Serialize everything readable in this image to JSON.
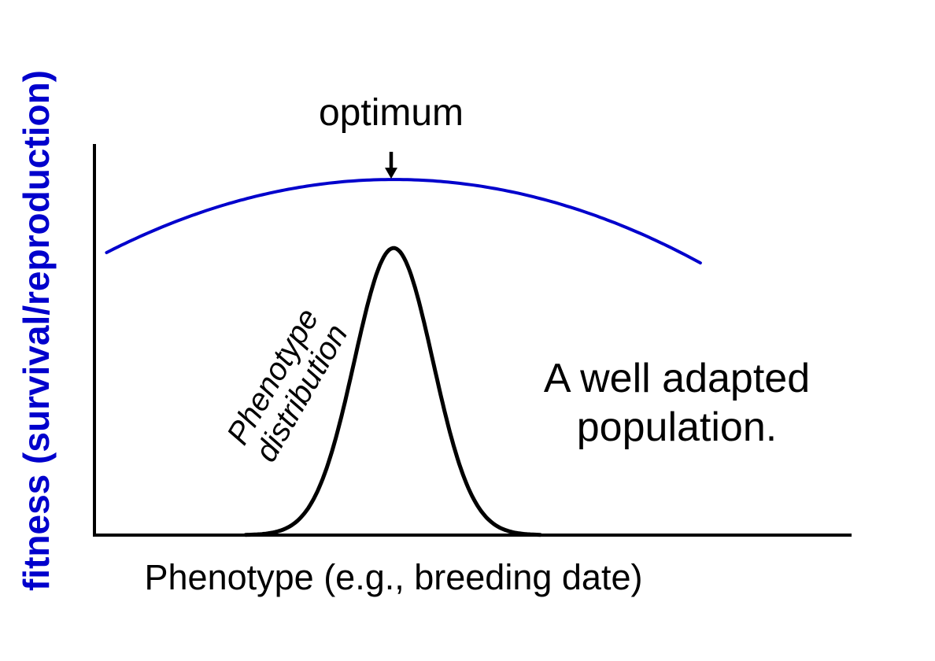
{
  "figure": {
    "ylabel": "fitness (survival/reproduction)",
    "xlabel": "Phenotype (e.g., breeding date)",
    "optimum_label": "optimum",
    "distribution_label": {
      "line1": "Phenotype",
      "line2": "distribution"
    },
    "caption": {
      "line1": "A well adapted",
      "line2": "population."
    }
  },
  "colors": {
    "accent_blue": "#0000cc",
    "ink": "#000000",
    "background": "#ffffff"
  },
  "chart_data": {
    "type": "line",
    "title": "",
    "xlabel": "Phenotype (e.g., breeding date)",
    "ylabel": "fitness (survival/reproduction)",
    "axes": {
      "x_ticks": [],
      "y_ticks": [],
      "grid": false,
      "note": "conceptual sketch without numeric scales; series coordinates are normalized 0-1 within the plot area"
    },
    "series": [
      {
        "name": "fitness-function",
        "description": "broad shallow blue curve of fitness vs phenotype, maximum at the optimum",
        "kind": "parabola",
        "color": "#0000cc",
        "stroke_width": 4,
        "cx": 0.396,
        "peak": 0.913,
        "k": 1.3,
        "x_start": 0.016,
        "x_end": 0.802
      },
      {
        "name": "phenotype-distribution",
        "description": "narrow black bell curve centered under the fitness optimum",
        "kind": "gaussian",
        "color": "#000000",
        "stroke_width": 5,
        "mean": 0.396,
        "sd": 0.052,
        "peak": 0.737,
        "x_start": 0.2,
        "x_end": 0.59
      }
    ],
    "annotations": [
      {
        "text": "optimum",
        "type": "arrow-down",
        "x": 0.3927,
        "y_start": 0.984,
        "y_tip": 0.915
      },
      {
        "text": "Phenotype distribution",
        "type": "rotated-italic-label",
        "target": "phenotype-distribution curve"
      },
      {
        "text": "A well adapted population.",
        "type": "caption",
        "position": "right of distribution curve"
      }
    ],
    "legend": null
  }
}
